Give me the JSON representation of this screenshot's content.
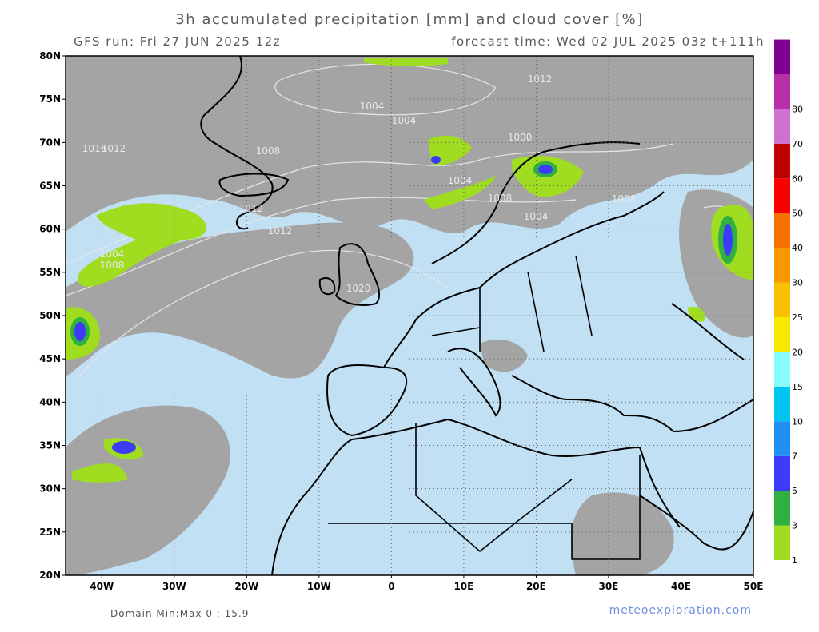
{
  "header": {
    "title": "3h accumulated precipitation [mm] and cloud cover [%]",
    "run": "GFS run: Fri 27 JUN 2025 12z",
    "forecast": "forecast time: Wed 02 JUL 2025 03z  t+111h"
  },
  "map": {
    "lat_labels": [
      "80N",
      "75N",
      "70N",
      "65N",
      "60N",
      "55N",
      "50N",
      "45N",
      "40N",
      "35N",
      "30N",
      "25N",
      "20N"
    ],
    "lon_labels": [
      "40W",
      "30W",
      "20W",
      "10W",
      "0",
      "10E",
      "20E",
      "30E",
      "40E",
      "50E"
    ],
    "isobar_labels": [
      "1004",
      "1004",
      "1008",
      "1012",
      "1012",
      "1004",
      "1008",
      "1000",
      "1004",
      "1008",
      "1004",
      "1012",
      "1016",
      "1020",
      "1012",
      "1008",
      "1004"
    ]
  },
  "colorbar": {
    "levels": [
      1,
      3,
      5,
      7,
      10,
      15,
      20,
      25,
      30,
      40,
      50,
      60,
      70,
      80
    ],
    "colors": [
      "#a0dc20",
      "#30b040",
      "#3c3cf8",
      "#2090f0",
      "#00c4f0",
      "#88fcf8",
      "#f8e800",
      "#f8c000",
      "#f89800",
      "#f87000",
      "#f80000",
      "#c00000",
      "#d070d0",
      "#b830a8",
      "#800090"
    ]
  },
  "footer": {
    "domain": "Domain Min:Max 0 : 15.9",
    "site": "meteoexploration.com"
  }
}
